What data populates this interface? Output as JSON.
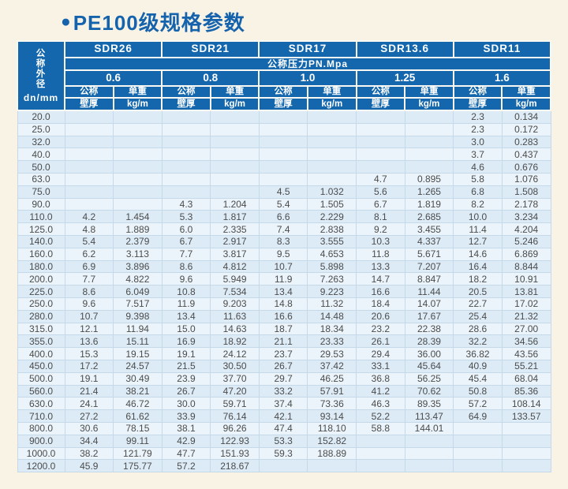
{
  "title": {
    "bullet": "●",
    "text": "PE100级规格参数"
  },
  "colors": {
    "header_blue": "#1467ad",
    "title_blue": "#1563ad",
    "row_stripe_dark": "#dcebf6",
    "row_stripe_light": "#ebf4fa",
    "page_background": "#f8f3e4"
  },
  "table": {
    "corner": {
      "chars": [
        "公",
        "称",
        "外",
        "径"
      ],
      "unit": "dn/mm"
    },
    "sdr_groups": [
      "SDR26",
      "SDR21",
      "SDR17",
      "SDR13.6",
      "SDR11"
    ],
    "pressure_label": "公称压力PN.Mpa",
    "pressures": [
      "0.6",
      "0.8",
      "1.0",
      "1.25",
      "1.6"
    ],
    "subheaders": {
      "thickness_top": "公称",
      "thickness_bottom": "壁厚",
      "weight_top": "单重",
      "weight_bottom": "kg/m"
    },
    "rows": [
      {
        "dn": "20.0",
        "cells": [
          "",
          "",
          "",
          "",
          "",
          "",
          "",
          "",
          "2.3",
          "0.134"
        ]
      },
      {
        "dn": "25.0",
        "cells": [
          "",
          "",
          "",
          "",
          "",
          "",
          "",
          "",
          "2.3",
          "0.172"
        ]
      },
      {
        "dn": "32.0",
        "cells": [
          "",
          "",
          "",
          "",
          "",
          "",
          "",
          "",
          "3.0",
          "0.283"
        ]
      },
      {
        "dn": "40.0",
        "cells": [
          "",
          "",
          "",
          "",
          "",
          "",
          "",
          "",
          "3.7",
          "0.437"
        ]
      },
      {
        "dn": "50.0",
        "cells": [
          "",
          "",
          "",
          "",
          "",
          "",
          "",
          "",
          "4.6",
          "0.676"
        ]
      },
      {
        "dn": "63.0",
        "cells": [
          "",
          "",
          "",
          "",
          "",
          "",
          "4.7",
          "0.895",
          "5.8",
          "1.076"
        ]
      },
      {
        "dn": "75.0",
        "cells": [
          "",
          "",
          "",
          "",
          "4.5",
          "1.032",
          "5.6",
          "1.265",
          "6.8",
          "1.508"
        ]
      },
      {
        "dn": "90.0",
        "cells": [
          "",
          "",
          "4.3",
          "1.204",
          "5.4",
          "1.505",
          "6.7",
          "1.819",
          "8.2",
          "2.178"
        ]
      },
      {
        "dn": "110.0",
        "cells": [
          "4.2",
          "1.454",
          "5.3",
          "1.817",
          "6.6",
          "2.229",
          "8.1",
          "2.685",
          "10.0",
          "3.234"
        ]
      },
      {
        "dn": "125.0",
        "cells": [
          "4.8",
          "1.889",
          "6.0",
          "2.335",
          "7.4",
          "2.838",
          "9.2",
          "3.455",
          "11.4",
          "4.204"
        ]
      },
      {
        "dn": "140.0",
        "cells": [
          "5.4",
          "2.379",
          "6.7",
          "2.917",
          "8.3",
          "3.555",
          "10.3",
          "4.337",
          "12.7",
          "5.246"
        ]
      },
      {
        "dn": "160.0",
        "cells": [
          "6.2",
          "3.113",
          "7.7",
          "3.817",
          "9.5",
          "4.653",
          "11.8",
          "5.671",
          "14.6",
          "6.869"
        ]
      },
      {
        "dn": "180.0",
        "cells": [
          "6.9",
          "3.896",
          "8.6",
          "4.812",
          "10.7",
          "5.898",
          "13.3",
          "7.207",
          "16.4",
          "8.844"
        ]
      },
      {
        "dn": "200.0",
        "cells": [
          "7.7",
          "4.822",
          "9.6",
          "5.949",
          "11.9",
          "7.263",
          "14.7",
          "8.847",
          "18.2",
          "10.91"
        ]
      },
      {
        "dn": "225.0",
        "cells": [
          "8.6",
          "6.049",
          "10.8",
          "7.534",
          "13.4",
          "9.223",
          "16.6",
          "11.44",
          "20.5",
          "13.81"
        ]
      },
      {
        "dn": "250.0",
        "cells": [
          "9.6",
          "7.517",
          "11.9",
          "9.203",
          "14.8",
          "11.32",
          "18.4",
          "14.07",
          "22.7",
          "17.02"
        ]
      },
      {
        "dn": "280.0",
        "cells": [
          "10.7",
          "9.398",
          "13.4",
          "11.63",
          "16.6",
          "14.48",
          "20.6",
          "17.67",
          "25.4",
          "21.32"
        ]
      },
      {
        "dn": "315.0",
        "cells": [
          "12.1",
          "11.94",
          "15.0",
          "14.63",
          "18.7",
          "18.34",
          "23.2",
          "22.38",
          "28.6",
          "27.00"
        ]
      },
      {
        "dn": "355.0",
        "cells": [
          "13.6",
          "15.11",
          "16.9",
          "18.92",
          "21.1",
          "23.33",
          "26.1",
          "28.39",
          "32.2",
          "34.56"
        ]
      },
      {
        "dn": "400.0",
        "cells": [
          "15.3",
          "19.15",
          "19.1",
          "24.12",
          "23.7",
          "29.53",
          "29.4",
          "36.00",
          "36.82",
          "43.56"
        ]
      },
      {
        "dn": "450.0",
        "cells": [
          "17.2",
          "24.57",
          "21.5",
          "30.50",
          "26.7",
          "37.42",
          "33.1",
          "45.64",
          "40.9",
          "55.21"
        ]
      },
      {
        "dn": "500.0",
        "cells": [
          "19.1",
          "30.49",
          "23.9",
          "37.70",
          "29.7",
          "46.25",
          "36.8",
          "56.25",
          "45.4",
          "68.04"
        ]
      },
      {
        "dn": "560.0",
        "cells": [
          "21.4",
          "38.21",
          "26.7",
          "47.20",
          "33.2",
          "57.91",
          "41.2",
          "70.62",
          "50.8",
          "85.36"
        ]
      },
      {
        "dn": "630.0",
        "cells": [
          "24.1",
          "46.72",
          "30.0",
          "59.71",
          "37.4",
          "73.36",
          "46.3",
          "89.35",
          "57.2",
          "108.14"
        ]
      },
      {
        "dn": "710.0",
        "cells": [
          "27.2",
          "61.62",
          "33.9",
          "76.14",
          "42.1",
          "93.14",
          "52.2",
          "113.47",
          "64.9",
          "133.57"
        ]
      },
      {
        "dn": "800.0",
        "cells": [
          "30.6",
          "78.15",
          "38.1",
          "96.26",
          "47.4",
          "118.10",
          "58.8",
          "144.01",
          "",
          ""
        ]
      },
      {
        "dn": "900.0",
        "cells": [
          "34.4",
          "99.11",
          "42.9",
          "122.93",
          "53.3",
          "152.82",
          "",
          "",
          "",
          ""
        ]
      },
      {
        "dn": "1000.0",
        "cells": [
          "38.2",
          "121.79",
          "47.7",
          "151.93",
          "59.3",
          "188.89",
          "",
          "",
          "",
          ""
        ]
      },
      {
        "dn": "1200.0",
        "cells": [
          "45.9",
          "175.77",
          "57.2",
          "218.67",
          "",
          "",
          "",
          "",
          "",
          ""
        ]
      }
    ]
  }
}
